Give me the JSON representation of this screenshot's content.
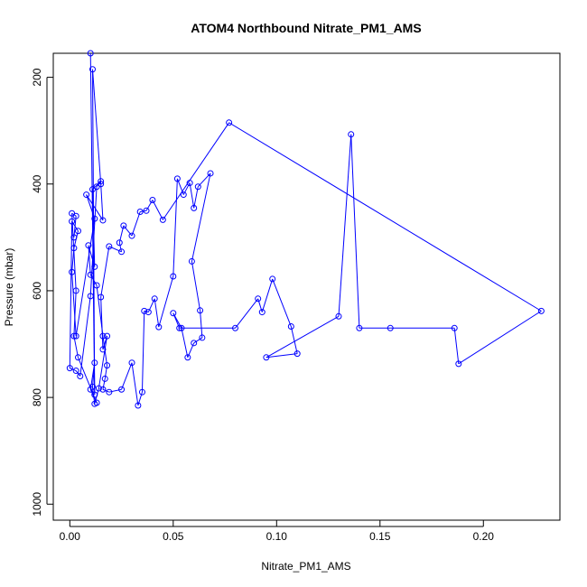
{
  "chart_data": {
    "type": "line",
    "title": "ATOM4 Northbound Nitrate_PM1_AMS",
    "xlabel": "Nitrate_PM1_AMS",
    "ylabel": "Pressure (mbar)",
    "xlim": [
      -0.008,
      0.237
    ],
    "ylim": [
      1030,
      155
    ],
    "y_reversed": true,
    "x_ticks": [
      0.0,
      0.05,
      0.1,
      0.15,
      0.2
    ],
    "x_tick_labels": [
      "0.00",
      "0.05",
      "0.10",
      "0.15",
      "0.20"
    ],
    "y_ticks": [
      200,
      400,
      600,
      800,
      1000
    ],
    "y_tick_labels": [
      "200",
      "400",
      "600",
      "800",
      "1000"
    ],
    "grid": false,
    "legend": "none",
    "series": [
      {
        "color": "#0000ff",
        "marker": "open-circle",
        "points": [
          [
            0.01,
            155
          ],
          [
            0.012,
            795
          ],
          [
            0.011,
            185
          ],
          [
            0.015,
            400
          ],
          [
            0.016,
            468
          ],
          [
            0.008,
            420
          ],
          [
            0.012,
            465
          ],
          [
            0.003,
            685
          ],
          [
            0.001,
            565
          ],
          [
            0.002,
            520
          ],
          [
            0.004,
            488
          ],
          [
            0.001,
            470
          ],
          [
            0.0,
            745
          ],
          [
            0.003,
            750
          ],
          [
            0.005,
            760
          ],
          [
            0.01,
            610
          ],
          [
            0.013,
            405
          ],
          [
            0.015,
            395
          ],
          [
            0.011,
            410
          ],
          [
            0.012,
            555
          ],
          [
            0.009,
            515
          ],
          [
            0.01,
            570
          ],
          [
            0.013,
            590
          ],
          [
            0.016,
            685
          ],
          [
            0.018,
            740
          ],
          [
            0.017,
            765
          ],
          [
            0.016,
            785
          ],
          [
            0.019,
            790
          ],
          [
            0.025,
            785
          ],
          [
            0.03,
            735
          ],
          [
            0.033,
            815
          ],
          [
            0.035,
            790
          ],
          [
            0.036,
            638
          ],
          [
            0.038,
            640
          ],
          [
            0.041,
            615
          ],
          [
            0.043,
            668
          ],
          [
            0.05,
            573
          ],
          [
            0.052,
            390
          ],
          [
            0.055,
            420
          ],
          [
            0.058,
            398
          ],
          [
            0.06,
            445
          ],
          [
            0.062,
            405
          ],
          [
            0.068,
            380
          ],
          [
            0.059,
            545
          ],
          [
            0.063,
            637
          ],
          [
            0.064,
            688
          ],
          [
            0.06,
            698
          ],
          [
            0.057,
            725
          ],
          [
            0.054,
            670
          ],
          [
            0.05,
            642
          ],
          [
            0.053,
            670
          ],
          [
            0.08,
            670
          ],
          [
            0.091,
            615
          ],
          [
            0.093,
            640
          ],
          [
            0.098,
            578
          ],
          [
            0.107,
            667
          ],
          [
            0.11,
            718
          ],
          [
            0.095,
            725
          ],
          [
            0.13,
            648
          ],
          [
            0.136,
            307
          ],
          [
            0.14,
            670
          ],
          [
            0.155,
            670
          ],
          [
            0.186,
            670
          ],
          [
            0.188,
            737
          ],
          [
            0.228,
            638
          ],
          [
            0.077,
            285
          ],
          [
            0.045,
            467
          ],
          [
            0.04,
            430
          ],
          [
            0.037,
            450
          ],
          [
            0.034,
            452
          ],
          [
            0.03,
            497
          ],
          [
            0.026,
            478
          ],
          [
            0.024,
            510
          ],
          [
            0.025,
            527
          ],
          [
            0.019,
            517
          ],
          [
            0.015,
            612
          ],
          [
            0.016,
            710
          ],
          [
            0.018,
            685
          ],
          [
            0.014,
            783
          ],
          [
            0.012,
            812
          ],
          [
            0.011,
            780
          ],
          [
            0.012,
            735
          ],
          [
            0.01,
            785
          ],
          [
            0.013,
            810
          ],
          [
            0.004,
            725
          ],
          [
            0.002,
            685
          ],
          [
            0.003,
            600
          ],
          [
            0.001,
            455
          ],
          [
            0.003,
            460
          ],
          [
            0.002,
            500
          ]
        ]
      }
    ]
  }
}
